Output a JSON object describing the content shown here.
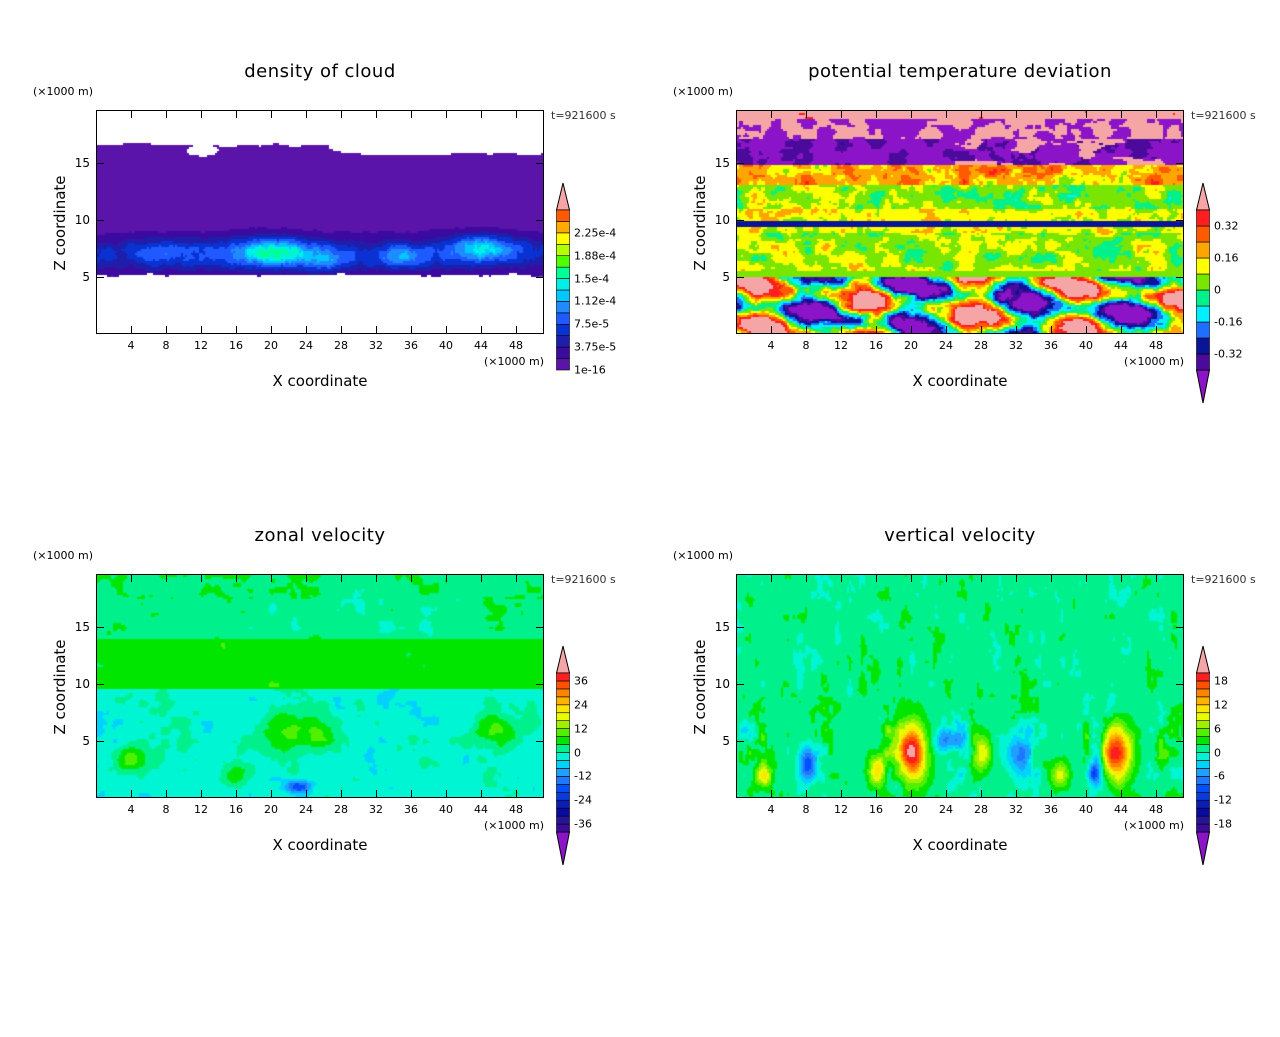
{
  "common": {
    "unit": "(×1000 m)",
    "time": "t=921600 s",
    "xlabel": "X coordinate",
    "zlabel": "Z coordinate",
    "x_ticks": [
      "4",
      "8",
      "12",
      "16",
      "20",
      "24",
      "28",
      "32",
      "36",
      "40",
      "44",
      "48"
    ],
    "z_ticks": [
      "5",
      "10",
      "15"
    ]
  },
  "chart_data": [
    {
      "type": "heatmap",
      "title": "density of cloud",
      "xlabel": "X coordinate",
      "ylabel": "Z coordinate",
      "xlim": [
        0,
        51.2
      ],
      "ylim": [
        0,
        19.6
      ],
      "levels_min": 1e-16,
      "level_step": 1.875e-05,
      "bins": 14,
      "colorbar_labels": [
        "1e-16",
        "3.75e-5",
        "7.5e-5",
        "1.12e-4",
        "1.5e-4",
        "1.88e-4",
        "2.25e-4"
      ],
      "colors": [
        "#5a14aa",
        "#3c0aa0",
        "#1e1eaa",
        "#0a32d2",
        "#1e5aff",
        "#1e8cff",
        "#00c8ff",
        "#00f0e6",
        "#00ff96",
        "#50ff00",
        "#b4ff00",
        "#ffff00",
        "#ffaa00",
        "#ff5a00"
      ],
      "over_color": "#f5a5a5",
      "under_color": null
    },
    {
      "type": "heatmap",
      "title": "potential temperature deviation",
      "xlabel": "X coordinate",
      "ylabel": "Z coordinate",
      "xlim": [
        0,
        51.2
      ],
      "ylim": [
        0,
        19.6
      ],
      "levels_min": -0.4,
      "level_step": 0.08,
      "bins": 10,
      "colorbar_labels": [
        "-0.32",
        "-0.16",
        "0",
        "0.16",
        "0.32"
      ],
      "colors": [
        "#4b0a9b",
        "#0a1496",
        "#1e6eff",
        "#00f0ff",
        "#00f08c",
        "#78e600",
        "#ffff00",
        "#ffa500",
        "#ff5a00",
        "#ff1e1e"
      ],
      "over_color": "#f5a5a5",
      "under_color": "#8c14c8"
    },
    {
      "type": "heatmap",
      "title": "zonal velocity",
      "xlabel": "X coordinate",
      "ylabel": "Z coordinate",
      "xlim": [
        0,
        51.2
      ],
      "ylim": [
        0,
        19.6
      ],
      "levels_min": -40,
      "level_step": 4,
      "bins": 20,
      "colorbar_labels": [
        "-36",
        "-24",
        "-12",
        "0",
        "12",
        "24",
        "36"
      ],
      "colors": [
        "#3c0a96",
        "#28149b",
        "#0a0aa0",
        "#0a1eb4",
        "#0a3cdc",
        "#0050ff",
        "#1e78ff",
        "#1ea0ff",
        "#00d2ff",
        "#00f5d2",
        "#00f08c",
        "#00e600",
        "#50f000",
        "#a0f000",
        "#e6ff00",
        "#ffe600",
        "#ffb400",
        "#ff8200",
        "#ff5000",
        "#ff1e1e"
      ],
      "over_color": "#f5a5a5",
      "under_color": "#8c14c8"
    },
    {
      "type": "heatmap",
      "title": "vertical velocity",
      "xlabel": "X coordinate",
      "ylabel": "Z coordinate",
      "xlim": [
        0,
        51.2
      ],
      "ylim": [
        0,
        19.6
      ],
      "levels_min": -20,
      "level_step": 2,
      "bins": 20,
      "colorbar_labels": [
        "-18",
        "-12",
        "-6",
        "0",
        "6",
        "12",
        "18"
      ],
      "colors": [
        "#3c0a96",
        "#28149b",
        "#0a0aa0",
        "#0a1eb4",
        "#0a3cdc",
        "#0050ff",
        "#1e78ff",
        "#1ea0ff",
        "#00d2ff",
        "#00f5d2",
        "#00f08c",
        "#00e600",
        "#50f000",
        "#a0f000",
        "#e6ff00",
        "#ffe600",
        "#ffb400",
        "#ff8200",
        "#ff5000",
        "#ff1e1e"
      ],
      "over_color": "#f5a5a5",
      "under_color": "#8c14c8"
    }
  ]
}
